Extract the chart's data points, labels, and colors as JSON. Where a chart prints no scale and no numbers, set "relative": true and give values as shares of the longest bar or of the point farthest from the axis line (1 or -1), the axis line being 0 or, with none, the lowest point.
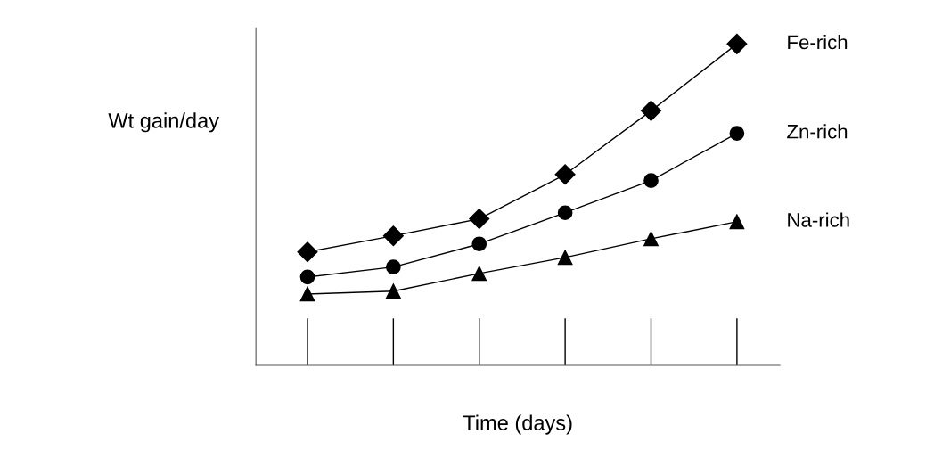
{
  "chart_data": {
    "type": "line",
    "relative": true,
    "xlabel": "Time (days)",
    "ylabel": "Wt gain/day",
    "categories": [
      null,
      null,
      null,
      null,
      null,
      null
    ],
    "series": [
      {
        "name": "Fe-rich",
        "color": "#000000",
        "marker": "diamond",
        "values": [
          0.353,
          0.403,
          0.456,
          0.594,
          0.792,
          1
        ]
      },
      {
        "name": "Zn-rich",
        "color": "#000000",
        "marker": "circle",
        "values": [
          0.275,
          0.306,
          0.378,
          0.475,
          0.575,
          0.722
        ]
      },
      {
        "name": "Na-rich",
        "color": "#000000",
        "marker": "triangle",
        "values": [
          0.222,
          0.231,
          0.286,
          0.336,
          0.394,
          0.447
        ]
      }
    ],
    "grid": false,
    "legend": false,
    "tick_labels": false
  }
}
